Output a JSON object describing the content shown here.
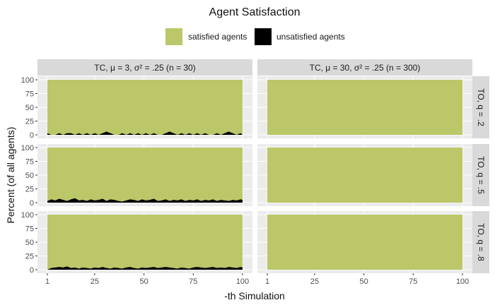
{
  "chart_data": {
    "type": "area",
    "title": "Agent Satisfaction",
    "xlabel": "-th Simulation",
    "ylabel": "Percent (of all agents)",
    "xlim": [
      1,
      100
    ],
    "ylim": [
      0,
      100
    ],
    "x_ticks": [
      1,
      25,
      50,
      75,
      100
    ],
    "y_ticks": [
      0,
      25,
      50,
      75,
      100
    ],
    "stacked": true,
    "grid": true,
    "legend_position": "top",
    "legend": [
      {
        "label": "satisfied agents",
        "color": "#bbc768"
      },
      {
        "label": "unsatisfied agents",
        "color": "#000000"
      }
    ],
    "column_facets": [
      "TC, μ = 3, σ² = .25 (n = 30)",
      "TC, μ = 30, σ² = .25 (n = 300)"
    ],
    "row_facets": [
      "TO, q = .2",
      "TO, q = .5",
      "TO, q = .8"
    ],
    "panels": [
      {
        "row": 0,
        "col": 0,
        "series": "unsatisfied agents",
        "x": [
          1,
          3,
          5,
          7,
          9,
          11,
          13,
          15,
          17,
          19,
          21,
          23,
          25,
          27,
          29,
          31,
          33,
          35,
          37,
          39,
          41,
          43,
          45,
          47,
          49,
          51,
          53,
          55,
          57,
          59,
          61,
          63,
          65,
          67,
          69,
          71,
          73,
          75,
          77,
          79,
          81,
          83,
          85,
          87,
          89,
          91,
          93,
          95,
          97,
          99,
          100
        ],
        "values": [
          3,
          0,
          0,
          3,
          0,
          3,
          3,
          0,
          3,
          0,
          3,
          0,
          3,
          0,
          3,
          6,
          3,
          0,
          0,
          3,
          0,
          3,
          0,
          3,
          0,
          3,
          0,
          3,
          0,
          0,
          3,
          6,
          3,
          0,
          3,
          0,
          3,
          0,
          3,
          0,
          3,
          0,
          0,
          3,
          0,
          3,
          6,
          3,
          0,
          3,
          0
        ]
      },
      {
        "row": 0,
        "col": 1,
        "series": "unsatisfied agents",
        "x": [
          1,
          100
        ],
        "values": [
          0,
          0
        ]
      },
      {
        "row": 1,
        "col": 0,
        "series": "unsatisfied agents",
        "x": [
          1,
          3,
          5,
          7,
          9,
          11,
          13,
          15,
          17,
          19,
          21,
          23,
          25,
          27,
          29,
          31,
          33,
          35,
          37,
          39,
          41,
          43,
          45,
          47,
          49,
          51,
          53,
          55,
          57,
          59,
          61,
          63,
          65,
          67,
          69,
          71,
          73,
          75,
          77,
          79,
          81,
          83,
          85,
          87,
          89,
          91,
          93,
          95,
          97,
          99,
          100
        ],
        "values": [
          3,
          6,
          4,
          7,
          5,
          3,
          6,
          8,
          4,
          5,
          3,
          6,
          4,
          5,
          7,
          3,
          6,
          5,
          3,
          2,
          4,
          6,
          5,
          3,
          6,
          4,
          5,
          7,
          3,
          4,
          6,
          3,
          5,
          4,
          6,
          3,
          5,
          4,
          6,
          3,
          5,
          4,
          6,
          3,
          5,
          4,
          3,
          5,
          4,
          6,
          5
        ]
      },
      {
        "row": 1,
        "col": 1,
        "series": "unsatisfied agents",
        "x": [
          1,
          100
        ],
        "values": [
          0,
          0
        ]
      },
      {
        "row": 2,
        "col": 0,
        "series": "unsatisfied agents",
        "x": [
          1,
          3,
          5,
          7,
          9,
          11,
          13,
          15,
          17,
          19,
          21,
          23,
          25,
          27,
          29,
          31,
          33,
          35,
          37,
          39,
          41,
          43,
          45,
          47,
          49,
          51,
          53,
          55,
          57,
          59,
          61,
          63,
          65,
          67,
          69,
          71,
          73,
          75,
          77,
          79,
          81,
          83,
          85,
          87,
          89,
          91,
          93,
          95,
          97,
          99,
          100
        ],
        "values": [
          0,
          3,
          4,
          5,
          4,
          6,
          3,
          4,
          2,
          4,
          3,
          2,
          4,
          3,
          5,
          3,
          2,
          4,
          3,
          2,
          4,
          5,
          3,
          2,
          4,
          3,
          4,
          5,
          3,
          4,
          5,
          4,
          3,
          2,
          4,
          3,
          2,
          4,
          5,
          4,
          3,
          4,
          5,
          3,
          4,
          3,
          5,
          4,
          3,
          5,
          4
        ]
      },
      {
        "row": 2,
        "col": 1,
        "series": "unsatisfied agents",
        "x": [
          1,
          100
        ],
        "values": [
          0,
          0
        ]
      }
    ]
  }
}
